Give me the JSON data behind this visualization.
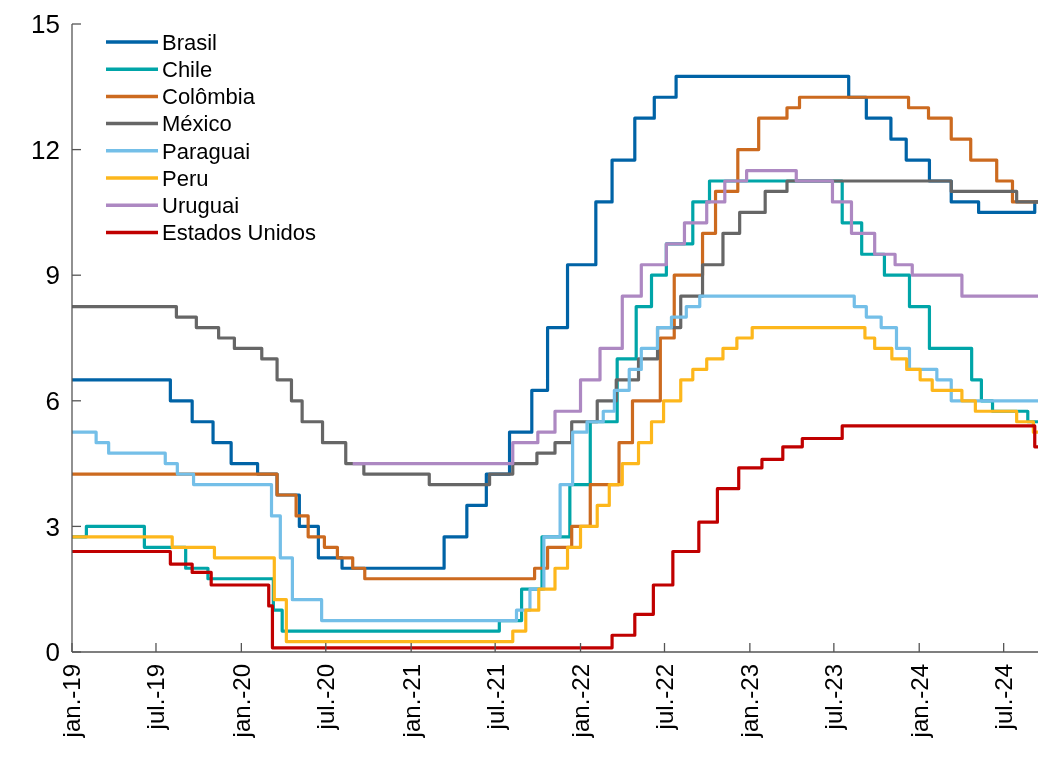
{
  "chart_data": {
    "type": "step",
    "xlim": [
      "2019-01-01",
      "2024-09-13"
    ],
    "xticks": [
      {
        "value": "2019-01-01",
        "label": "jan.-19"
      },
      {
        "value": "2019-07-01",
        "label": "jul.-19"
      },
      {
        "value": "2020-01-01",
        "label": "jan.-20"
      },
      {
        "value": "2020-07-01",
        "label": "jul.-20"
      },
      {
        "value": "2021-01-01",
        "label": "jan.-21"
      },
      {
        "value": "2021-07-01",
        "label": "jul.-21"
      },
      {
        "value": "2022-01-01",
        "label": "jan.-22"
      },
      {
        "value": "2022-07-01",
        "label": "jul.-22"
      },
      {
        "value": "2023-01-01",
        "label": "jan.-23"
      },
      {
        "value": "2023-07-01",
        "label": "jul.-23"
      },
      {
        "value": "2024-01-01",
        "label": "jan.-24"
      },
      {
        "value": "2024-07-01",
        "label": "jul.-24"
      }
    ],
    "ylim": [
      0,
      15
    ],
    "yticks": [
      0,
      3,
      6,
      9,
      12,
      15
    ],
    "legend": "top left",
    "grid": false,
    "series": [
      {
        "name": "Brasil",
        "color": "#0063a6",
        "x": [
          "2019-01-01",
          "2019-08-01",
          "2019-09-17",
          "2019-11-01",
          "2019-12-10",
          "2020-02-05",
          "2020-03-18",
          "2020-05-05",
          "2020-06-15",
          "2020-08-05",
          "2021-03-13",
          "2021-05-01",
          "2021-06-12",
          "2021-08-01",
          "2021-09-18",
          "2021-10-22",
          "2021-12-04",
          "2022-02-03",
          "2022-03-10",
          "2022-04-28",
          "2022-06-09",
          "2022-07-26",
          "2023-08-02",
          "2023-09-09",
          "2023-11-01",
          "2023-12-04",
          "2024-01-23",
          "2024-03-10",
          "2024-05-08",
          "2024-09-06",
          "2024-09-13"
        ],
        "values": [
          6.5,
          6.0,
          5.5,
          5.0,
          4.5,
          4.25,
          3.75,
          3.0,
          2.25,
          2.0,
          2.75,
          3.5,
          4.25,
          5.25,
          6.25,
          7.75,
          9.25,
          10.75,
          11.75,
          12.75,
          13.25,
          13.75,
          13.25,
          12.75,
          12.25,
          11.75,
          11.25,
          10.75,
          10.5,
          10.75,
          10.75
        ]
      },
      {
        "name": "Chile",
        "color": "#00a5a8",
        "x": [
          "2019-01-01",
          "2019-02-01",
          "2019-06-06",
          "2019-09-03",
          "2019-10-21",
          "2020-03-10",
          "2020-03-29",
          "2021-07-10",
          "2021-08-27",
          "2021-10-10",
          "2021-12-09",
          "2022-01-22",
          "2022-03-21",
          "2022-05-01",
          "2022-06-03",
          "2022-07-05",
          "2022-08-31",
          "2022-10-06",
          "2023-07-19",
          "2023-08-30",
          "2023-10-18",
          "2023-12-11",
          "2024-01-23",
          "2024-04-23",
          "2024-05-14",
          "2024-06-07",
          "2024-08-22",
          "2024-09-13"
        ],
        "values": [
          2.75,
          3.0,
          2.5,
          2.0,
          1.75,
          1.0,
          0.5,
          0.75,
          1.5,
          2.75,
          4.0,
          5.5,
          7.0,
          8.25,
          9.0,
          9.75,
          10.75,
          11.25,
          10.25,
          9.5,
          9.0,
          8.25,
          7.25,
          6.5,
          6.0,
          5.75,
          5.5,
          5.5
        ]
      },
      {
        "name": "Colômbia",
        "color": "#cc6a1f",
        "x": [
          "2019-01-01",
          "2020-03-18",
          "2020-04-28",
          "2020-05-24",
          "2020-06-28",
          "2020-07-26",
          "2020-08-28",
          "2020-09-23",
          "2021-09-24",
          "2021-10-22",
          "2021-12-13",
          "2022-01-22",
          "2022-03-25",
          "2022-04-23",
          "2022-06-22",
          "2022-07-22",
          "2022-09-21",
          "2022-10-19",
          "2022-12-06",
          "2023-01-20",
          "2023-03-22",
          "2023-04-18",
          "2023-12-09",
          "2024-01-21",
          "2024-03-10",
          "2024-04-21",
          "2024-06-16",
          "2024-07-20",
          "2024-09-13"
        ],
        "values": [
          4.25,
          3.75,
          3.25,
          2.75,
          2.5,
          2.25,
          2.0,
          1.75,
          2.0,
          2.5,
          3.0,
          4.0,
          5.0,
          6.0,
          7.5,
          9.0,
          10.0,
          11.0,
          12.0,
          12.75,
          13.0,
          13.25,
          13.0,
          12.75,
          12.25,
          11.75,
          11.25,
          10.75,
          10.75
        ]
      },
      {
        "name": "México",
        "color": "#666666",
        "x": [
          "2019-01-01",
          "2019-08-14",
          "2019-09-26",
          "2019-11-13",
          "2019-12-17",
          "2020-02-14",
          "2020-03-18",
          "2020-04-18",
          "2020-05-11",
          "2020-06-24",
          "2020-08-13",
          "2020-09-21",
          "2021-02-09",
          "2021-06-19",
          "2021-08-08",
          "2021-09-29",
          "2021-11-07",
          "2021-12-13",
          "2022-02-06",
          "2022-03-19",
          "2022-05-06",
          "2022-06-16",
          "2022-08-05",
          "2022-09-21",
          "2022-11-04",
          "2022-12-10",
          "2023-02-03",
          "2023-03-22",
          "2024-03-10",
          "2024-07-29",
          "2024-09-13"
        ],
        "values": [
          8.25,
          8.0,
          7.75,
          7.5,
          7.25,
          7.0,
          6.5,
          6.0,
          5.5,
          5.0,
          4.5,
          4.25,
          4.0,
          4.25,
          4.5,
          4.75,
          5.0,
          5.5,
          6.0,
          6.5,
          7.0,
          7.75,
          8.5,
          9.25,
          10.0,
          10.5,
          11.0,
          11.25,
          11.0,
          10.75,
          10.75
        ]
      },
      {
        "name": "Paraguai",
        "color": "#74bfe8",
        "x": [
          "2019-01-01",
          "2019-02-22",
          "2019-03-21",
          "2019-07-21",
          "2019-08-16",
          "2019-09-20",
          "2020-03-06",
          "2020-03-25",
          "2020-04-20",
          "2020-06-22",
          "2021-08-16",
          "2021-09-14",
          "2021-10-14",
          "2021-11-18",
          "2021-12-15",
          "2022-01-15",
          "2022-02-19",
          "2022-03-15",
          "2022-04-16",
          "2022-05-12",
          "2022-06-16",
          "2022-07-16",
          "2022-08-17",
          "2022-09-15",
          "2023-08-14",
          "2023-09-09",
          "2023-10-11",
          "2023-11-13",
          "2023-12-11",
          "2024-02-08",
          "2024-03-10",
          "2024-09-13"
        ],
        "values": [
          5.25,
          5.0,
          4.75,
          4.5,
          4.25,
          4.0,
          3.25,
          2.25,
          1.25,
          0.75,
          1.0,
          1.5,
          2.75,
          4.0,
          5.25,
          5.5,
          5.75,
          6.25,
          6.75,
          7.25,
          7.75,
          8.0,
          8.25,
          8.5,
          8.25,
          8.0,
          7.75,
          7.25,
          6.75,
          6.5,
          6.0,
          6.0
        ]
      },
      {
        "name": "Peru",
        "color": "#fdb71c",
        "x": [
          "2019-01-01",
          "2019-08-05",
          "2019-11-04",
          "2020-03-12",
          "2020-04-07",
          "2021-08-08",
          "2021-09-05",
          "2021-10-03",
          "2021-11-07",
          "2021-12-04",
          "2022-01-01",
          "2022-02-06",
          "2022-03-04",
          "2022-04-01",
          "2022-05-06",
          "2022-06-03",
          "2022-06-29",
          "2022-08-05",
          "2022-08-31",
          "2022-09-30",
          "2022-11-04",
          "2022-12-04",
          "2023-01-06",
          "2023-09-06",
          "2023-09-27",
          "2023-11-03",
          "2023-12-05",
          "2024-01-03",
          "2024-01-29",
          "2024-04-02",
          "2024-05-01",
          "2024-07-29",
          "2024-09-03",
          "2024-09-13"
        ],
        "values": [
          2.75,
          2.5,
          2.25,
          1.25,
          0.25,
          0.5,
          1.0,
          1.5,
          2.0,
          2.5,
          3.0,
          3.5,
          4.0,
          4.5,
          5.0,
          5.5,
          6.0,
          6.5,
          6.75,
          7.0,
          7.25,
          7.5,
          7.75,
          7.5,
          7.25,
          7.0,
          6.75,
          6.5,
          6.25,
          6.0,
          5.75,
          5.5,
          5.25,
          5.25
        ]
      },
      {
        "name": "Uruguai",
        "color": "#ad88c2",
        "x": [
          "2020-08-28",
          "2021-08-08",
          "2021-10-01",
          "2021-11-07",
          "2022-01-01",
          "2022-02-12",
          "2022-04-01",
          "2022-05-12",
          "2022-07-05",
          "2022-08-13",
          "2022-09-30",
          "2022-11-08",
          "2022-12-25",
          "2023-04-11",
          "2023-06-28",
          "2023-08-08",
          "2023-09-27",
          "2023-11-10",
          "2023-12-17",
          "2024-04-02",
          "2024-09-13"
        ],
        "values": [
          4.5,
          5.0,
          5.25,
          5.75,
          6.5,
          7.25,
          8.5,
          9.25,
          9.75,
          10.25,
          10.75,
          11.25,
          11.5,
          11.25,
          10.75,
          10.0,
          9.5,
          9.25,
          9.0,
          8.5,
          8.5
        ]
      },
      {
        "name": "Estados Unidos",
        "color": "#c00000",
        "x": [
          "2019-01-01",
          "2019-08-01",
          "2019-09-17",
          "2019-10-28",
          "2020-02-29",
          "2020-03-08",
          "2022-03-10",
          "2022-04-28",
          "2022-06-07",
          "2022-07-19",
          "2022-09-13",
          "2022-10-23",
          "2022-12-08",
          "2023-01-27",
          "2023-03-13",
          "2023-04-24",
          "2023-07-19",
          "2024-09-06",
          "2024-09-13"
        ],
        "values": [
          2.4,
          2.1,
          1.9,
          1.6,
          1.1,
          0.1,
          0.4,
          0.9,
          1.6,
          2.4,
          3.1,
          3.9,
          4.4,
          4.6,
          4.9,
          5.1,
          5.4,
          4.9,
          4.9
        ]
      }
    ]
  }
}
